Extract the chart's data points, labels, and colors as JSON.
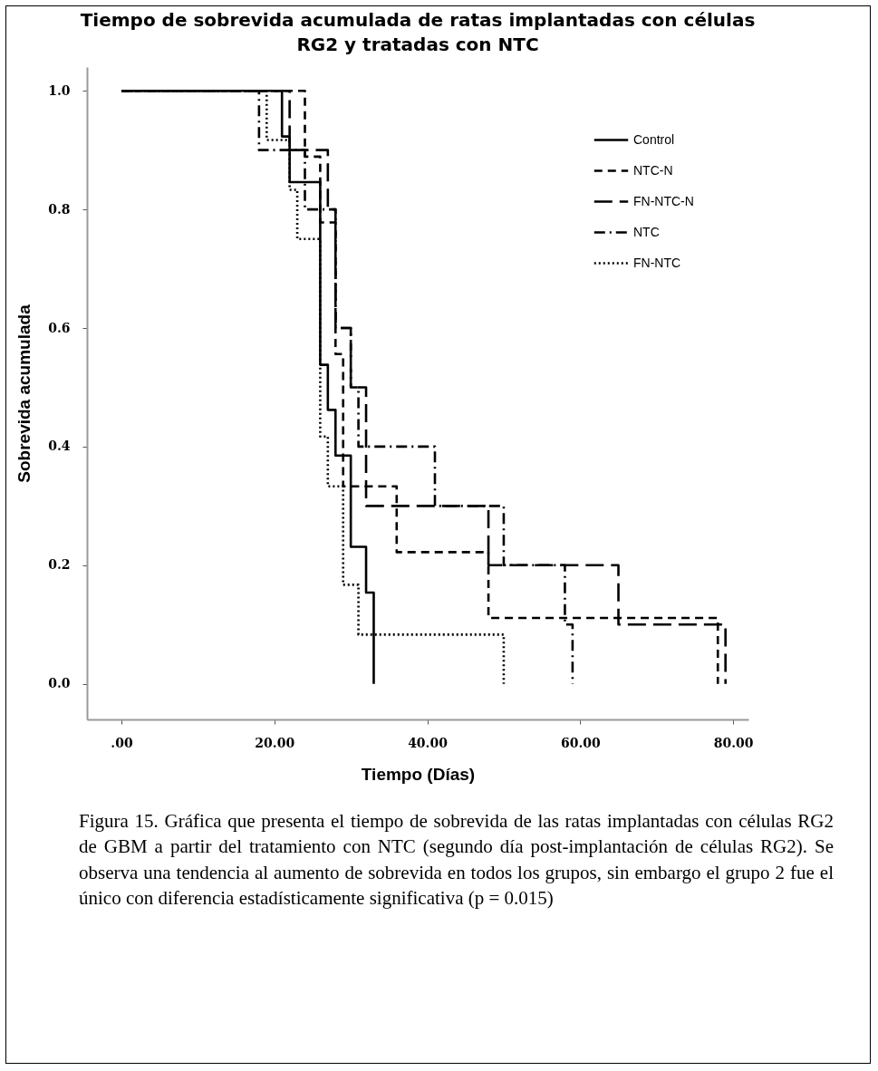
{
  "chart_data": {
    "type": "step",
    "title": "Tiempo de sobrevida acumulada de ratas implantadas con células RG2 y tratadas con NTC",
    "xlabel": "Tiempo (Días)",
    "ylabel": "Sobrevida acumulada",
    "xlim": [
      -4.5,
      82
    ],
    "ylim": [
      -0.06,
      1.04
    ],
    "xticks": [
      {
        "value": 0,
        "label": ".00"
      },
      {
        "value": 20,
        "label": "20.00"
      },
      {
        "value": 40,
        "label": "40.00"
      },
      {
        "value": 60,
        "label": "60.00"
      },
      {
        "value": 80,
        "label": "80.00"
      }
    ],
    "yticks": [
      {
        "value": 0,
        "label": "0.0"
      },
      {
        "value": 0.2,
        "label": "0.2"
      },
      {
        "value": 0.4,
        "label": "0.4"
      },
      {
        "value": 0.6,
        "label": "0.6"
      },
      {
        "value": 0.8,
        "label": "0.8"
      },
      {
        "value": 1,
        "label": "1.0"
      }
    ],
    "grid": false,
    "legend": "top right",
    "marker": "none",
    "series": [
      {
        "name": "Control",
        "color": "#000000",
        "line_style": "solid",
        "x": [
          0,
          21,
          22,
          26,
          27,
          28,
          30,
          32,
          33
        ],
        "values": [
          1,
          0.923,
          0.846,
          0.538,
          0.462,
          0.385,
          0.231,
          0.154,
          0
        ]
      },
      {
        "name": "NTC-N",
        "color": "#000000",
        "line_style": "dashed",
        "x": [
          0,
          24,
          26,
          28,
          29,
          36,
          48,
          78
        ],
        "values": [
          1,
          0.889,
          0.778,
          0.556,
          0.333,
          0.222,
          0.111,
          0
        ]
      },
      {
        "name": "FN-NTC-N",
        "color": "#000000",
        "line_style": "longdash",
        "x": [
          0,
          22,
          27,
          28,
          30,
          32,
          48,
          65,
          79
        ],
        "values": [
          1,
          0.9,
          0.8,
          0.6,
          0.5,
          0.3,
          0.2,
          0.1,
          0
        ]
      },
      {
        "name": "NTC",
        "color": "#000000",
        "line_style": "dashdot",
        "x": [
          0,
          18,
          24,
          28,
          30,
          31,
          41,
          50,
          58,
          59
        ],
        "values": [
          1,
          0.9,
          0.8,
          0.6,
          0.5,
          0.4,
          0.3,
          0.2,
          0.1,
          0
        ]
      },
      {
        "name": "FN-NTC",
        "color": "#000000",
        "line_style": "dotted",
        "x": [
          0,
          19,
          22,
          23,
          26,
          27,
          29,
          31,
          50
        ],
        "values": [
          1,
          0.917,
          0.833,
          0.75,
          0.417,
          0.333,
          0.167,
          0.083,
          0
        ]
      }
    ],
    "annotations": [
      "Figura 15. Gráfica que presenta el tiempo de sobrevida de las ratas implantadas con células RG2 de GBM a partir del tratamiento con NTC (segundo día post-implantación de células RG2). Se observa una tendencia al aumento de sobrevida en todos los grupos, sin embargo el grupo 2 fue el único con diferencia estadísticamente significativa (p = 0.015)"
    ]
  }
}
